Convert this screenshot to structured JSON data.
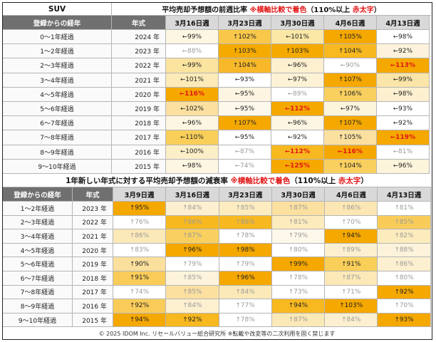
{
  "top": {
    "category": "SUV",
    "title": "平均売却予想額の前週比率",
    "note_prefix": "※横軸比較で着色",
    "note_paren_open": "（110%以上",
    "note_bold": "赤太字",
    "note_paren_close": "）",
    "headers": [
      "登録からの経年",
      "年式",
      "3月16日週",
      "3月23日週",
      "3月30日週",
      "4月6日週",
      "4月13日週"
    ],
    "rows": [
      {
        "label": "0～1年経過",
        "year": "2024 年",
        "cells": [
          {
            "a": "←",
            "v": "99%",
            "bg": "#fdf6e2",
            "s": ""
          },
          {
            "a": "↑",
            "v": "102%",
            "bg": "#f9c84a",
            "s": ""
          },
          {
            "a": "←",
            "v": "101%",
            "bg": "#fbe7a6",
            "s": ""
          },
          {
            "a": "↑",
            "v": "105%",
            "bg": "#f5a800",
            "s": ""
          },
          {
            "a": "←",
            "v": "98%",
            "bg": "#ffffff",
            "s": ""
          }
        ]
      },
      {
        "label": "1～2年経過",
        "year": "2023 年",
        "cells": [
          {
            "a": "←",
            "v": "88%",
            "bg": "#ffffff",
            "s": "dim"
          },
          {
            "a": "↑",
            "v": "103%",
            "bg": "#f5aa00",
            "s": ""
          },
          {
            "a": "↑",
            "v": "103%",
            "bg": "#f5aa00",
            "s": ""
          },
          {
            "a": "↑",
            "v": "104%",
            "bg": "#f7b820",
            "s": ""
          },
          {
            "a": "←",
            "v": "92%",
            "bg": "#fdf3dc",
            "s": ""
          }
        ]
      },
      {
        "label": "2～3年経過",
        "year": "2022 年",
        "cells": [
          {
            "a": "←",
            "v": "99%",
            "bg": "#fbe3a0",
            "s": ""
          },
          {
            "a": "↑",
            "v": "104%",
            "bg": "#f7b82a",
            "s": ""
          },
          {
            "a": "←",
            "v": "96%",
            "bg": "#fdf0d0",
            "s": ""
          },
          {
            "a": "←",
            "v": "90%",
            "bg": "#ffffff",
            "s": "dim"
          },
          {
            "a": "←",
            "v": "113%",
            "bg": "#f5a800",
            "s": "red"
          }
        ]
      },
      {
        "label": "3～4年経過",
        "year": "2021 年",
        "cells": [
          {
            "a": "←",
            "v": "101%",
            "bg": "#fcebb8",
            "s": ""
          },
          {
            "a": "←",
            "v": "93%",
            "bg": "#ffffff",
            "s": ""
          },
          {
            "a": "←",
            "v": "97%",
            "bg": "#fdf2d6",
            "s": ""
          },
          {
            "a": "↑",
            "v": "107%",
            "bg": "#f5a800",
            "s": ""
          },
          {
            "a": "←",
            "v": "99%",
            "bg": "#fbe5a8",
            "s": ""
          }
        ]
      },
      {
        "label": "4～5年経過",
        "year": "2020 年",
        "cells": [
          {
            "a": "←",
            "v": "116%",
            "bg": "#f5a800",
            "s": "red"
          },
          {
            "a": "←",
            "v": "95%",
            "bg": "#fdf5e2",
            "s": ""
          },
          {
            "a": "←",
            "v": "89%",
            "bg": "#ffffff",
            "s": "dim"
          },
          {
            "a": "↑",
            "v": "106%",
            "bg": "#f9d060",
            "s": ""
          },
          {
            "a": "←",
            "v": "98%",
            "bg": "#fdf0d0",
            "s": ""
          }
        ]
      },
      {
        "label": "5～6年経過",
        "year": "2019 年",
        "cells": [
          {
            "a": "←",
            "v": "102%",
            "bg": "#fbe0a0",
            "s": ""
          },
          {
            "a": "←",
            "v": "95%",
            "bg": "#fdf8ea",
            "s": ""
          },
          {
            "a": "←",
            "v": "112%",
            "bg": "#f5a800",
            "s": "red"
          },
          {
            "a": "←",
            "v": "97%",
            "bg": "#fdf4dc",
            "s": ""
          },
          {
            "a": "←",
            "v": "93%",
            "bg": "#ffffff",
            "s": ""
          }
        ]
      },
      {
        "label": "6～7年経過",
        "year": "2018 年",
        "cells": [
          {
            "a": "←",
            "v": "96%",
            "bg": "#fdf6e2",
            "s": ""
          },
          {
            "a": "↑",
            "v": "107%",
            "bg": "#f5a800",
            "s": ""
          },
          {
            "a": "←",
            "v": "96%",
            "bg": "#fdf6e2",
            "s": ""
          },
          {
            "a": "↑",
            "v": "107%",
            "bg": "#f5a800",
            "s": ""
          },
          {
            "a": "←",
            "v": "92%",
            "bg": "#ffffff",
            "s": ""
          }
        ]
      },
      {
        "label": "7～8年経過",
        "year": "2017 年",
        "cells": [
          {
            "a": "←",
            "v": "110%",
            "bg": "#f9cf5a",
            "s": ""
          },
          {
            "a": "←",
            "v": "95%",
            "bg": "#ffffff",
            "s": ""
          },
          {
            "a": "←",
            "v": "92%",
            "bg": "#ffffff",
            "s": ""
          },
          {
            "a": "↑",
            "v": "105%",
            "bg": "#fbe0a0",
            "s": ""
          },
          {
            "a": "←",
            "v": "119%",
            "bg": "#f5a800",
            "s": "red"
          }
        ]
      },
      {
        "label": "8～9年経過",
        "year": "2016 年",
        "cells": [
          {
            "a": "←",
            "v": "100%",
            "bg": "#fcefc8",
            "s": ""
          },
          {
            "a": "←",
            "v": "87%",
            "bg": "#ffffff",
            "s": "dim"
          },
          {
            "a": "←",
            "v": "112%",
            "bg": "#f7b820",
            "s": "red"
          },
          {
            "a": "←",
            "v": "116%",
            "bg": "#f5a800",
            "s": "red"
          },
          {
            "a": "←",
            "v": "81%",
            "bg": "#ffffff",
            "s": "dim"
          }
        ]
      },
      {
        "label": "9～10年経過",
        "year": "2015 年",
        "cells": [
          {
            "a": "←",
            "v": "98%",
            "bg": "#fdf6e2",
            "s": ""
          },
          {
            "a": "←",
            "v": "74%",
            "bg": "#ffffff",
            "s": "dim"
          },
          {
            "a": "←",
            "v": "125%",
            "bg": "#f5a800",
            "s": "red"
          },
          {
            "a": "↑",
            "v": "104%",
            "bg": "#f9d060",
            "s": ""
          },
          {
            "a": "←",
            "v": "96%",
            "bg": "#fdf4dc",
            "s": ""
          }
        ]
      }
    ]
  },
  "bottom": {
    "title": "1年新しい年式に対する平均売却予想額の減衰率",
    "note_prefix": "※横軸比較で着色",
    "note_paren_open": "（110%以上",
    "note_bold": "赤太字",
    "note_paren_close": "）",
    "headers": [
      "登録からの経年",
      "年式",
      "3月9日週",
      "3月16日週",
      "3月23日週",
      "3月30日週",
      "4月6日週",
      "4月13日週"
    ],
    "rows": [
      {
        "label": "1～2年経過",
        "year": "2023 年",
        "cells": [
          {
            "a": "↑",
            "v": "95%",
            "bg": "#f5a800",
            "s": ""
          },
          {
            "a": "↑",
            "v": "84%",
            "bg": "#fdf0d0",
            "s": "dim"
          },
          {
            "a": "↑",
            "v": "85%",
            "bg": "#fcecc0",
            "s": "dim"
          },
          {
            "a": "↑",
            "v": "87%",
            "bg": "#fbe0a0",
            "s": "dim"
          },
          {
            "a": "↑",
            "v": "86%",
            "bg": "#fce7b4",
            "s": "dim"
          },
          {
            "a": "↑",
            "v": "81%",
            "bg": "#ffffff",
            "s": "dim"
          }
        ]
      },
      {
        "label": "2～3年経過",
        "year": "2022 年",
        "cells": [
          {
            "a": "↑",
            "v": "76%",
            "bg": "#ffffff",
            "s": "dim"
          },
          {
            "a": "↑",
            "v": "86%",
            "bg": "#f7b820",
            "s": "dim"
          },
          {
            "a": "↑",
            "v": "86%",
            "bg": "#f7b820",
            "s": "dim"
          },
          {
            "a": "↑",
            "v": "81%",
            "bg": "#fcebbc",
            "s": "dim"
          },
          {
            "a": "↑",
            "v": "70%",
            "bg": "#ffffff",
            "s": "dim"
          },
          {
            "a": "↑",
            "v": "85%",
            "bg": "#f9cc5a",
            "s": "dim"
          }
        ]
      },
      {
        "label": "3～4年経過",
        "year": "2021 年",
        "cells": [
          {
            "a": "↑",
            "v": "86%",
            "bg": "#fce9b8",
            "s": "dim"
          },
          {
            "a": "↑",
            "v": "87%",
            "bg": "#f9d060",
            "s": "dim"
          },
          {
            "a": "↑",
            "v": "78%",
            "bg": "#ffffff",
            "s": "dim"
          },
          {
            "a": "↑",
            "v": "79%",
            "bg": "#fdf8ea",
            "s": "dim"
          },
          {
            "a": "↑",
            "v": "94%",
            "bg": "#f5a800",
            "s": ""
          },
          {
            "a": "↑",
            "v": "82%",
            "bg": "#fcebbc",
            "s": "dim"
          }
        ]
      },
      {
        "label": "4～5年経過",
        "year": "2020 年",
        "cells": [
          {
            "a": "↑",
            "v": "83%",
            "bg": "#ffffff",
            "s": "dim"
          },
          {
            "a": "↑",
            "v": "96%",
            "bg": "#f5a800",
            "s": ""
          },
          {
            "a": "↑",
            "v": "98%",
            "bg": "#f5a800",
            "s": ""
          },
          {
            "a": "↑",
            "v": "80%",
            "bg": "#ffffff",
            "s": "dim"
          },
          {
            "a": "↑",
            "v": "89%",
            "bg": "#fdf0d0",
            "s": "dim"
          },
          {
            "a": "↑",
            "v": "88%",
            "bg": "#fdf3dc",
            "s": "dim"
          }
        ]
      },
      {
        "label": "5～6年経過",
        "year": "2019 年",
        "cells": [
          {
            "a": "↑",
            "v": "90%",
            "bg": "#fbdf9c",
            "s": ""
          },
          {
            "a": "↑",
            "v": "79%",
            "bg": "#ffffff",
            "s": "dim"
          },
          {
            "a": "↑",
            "v": "79%",
            "bg": "#ffffff",
            "s": "dim"
          },
          {
            "a": "↑",
            "v": "99%",
            "bg": "#f5a800",
            "s": ""
          },
          {
            "a": "↑",
            "v": "91%",
            "bg": "#f9cf5a",
            "s": ""
          },
          {
            "a": "↑",
            "v": "86%",
            "bg": "#fdf0d0",
            "s": "dim"
          }
        ]
      },
      {
        "label": "6～7年経過",
        "year": "2018 年",
        "cells": [
          {
            "a": "↑",
            "v": "91%",
            "bg": "#f9cc5a",
            "s": ""
          },
          {
            "a": "↑",
            "v": "85%",
            "bg": "#fdf3dc",
            "s": "dim"
          },
          {
            "a": "↑",
            "v": "96%",
            "bg": "#f5a800",
            "s": ""
          },
          {
            "a": "↑",
            "v": "78%",
            "bg": "#ffffff",
            "s": "dim"
          },
          {
            "a": "↑",
            "v": "87%",
            "bg": "#fce9b8",
            "s": "dim"
          },
          {
            "a": "↑",
            "v": "80%",
            "bg": "#ffffff",
            "s": "dim"
          }
        ]
      },
      {
        "label": "7～8年経過",
        "year": "2017 年",
        "cells": [
          {
            "a": "↑",
            "v": "74%",
            "bg": "#ffffff",
            "s": "dim"
          },
          {
            "a": "↑",
            "v": "85%",
            "bg": "#fbe0a0",
            "s": "dim"
          },
          {
            "a": "↑",
            "v": "84%",
            "bg": "#fce9b8",
            "s": "dim"
          },
          {
            "a": "↑",
            "v": "73%",
            "bg": "#ffffff",
            "s": "dim"
          },
          {
            "a": "↑",
            "v": "71%",
            "bg": "#ffffff",
            "s": "dim"
          },
          {
            "a": "↑",
            "v": "92%",
            "bg": "#f5a800",
            "s": ""
          }
        ]
      },
      {
        "label": "8～9年経過",
        "year": "2016 年",
        "cells": [
          {
            "a": "↑",
            "v": "92%",
            "bg": "#f9cc5a",
            "s": ""
          },
          {
            "a": "↑",
            "v": "84%",
            "bg": "#fdf0d0",
            "s": "dim"
          },
          {
            "a": "↑",
            "v": "77%",
            "bg": "#ffffff",
            "s": "dim"
          },
          {
            "a": "↑",
            "v": "94%",
            "bg": "#f7b820",
            "s": ""
          },
          {
            "a": "↑",
            "v": "103%",
            "bg": "#f5a800",
            "s": ""
          },
          {
            "a": "↑",
            "v": "70%",
            "bg": "#ffffff",
            "s": "dim"
          }
        ]
      },
      {
        "label": "9～10年経過",
        "year": "2015 年",
        "cells": [
          {
            "a": "↑",
            "v": "94%",
            "bg": "#f5a800",
            "s": ""
          },
          {
            "a": "↑",
            "v": "92%",
            "bg": "#f7b820",
            "s": ""
          },
          {
            "a": "↑",
            "v": "78%",
            "bg": "#ffffff",
            "s": "dim"
          },
          {
            "a": "↑",
            "v": "87%",
            "bg": "#fce9b8",
            "s": "dim"
          },
          {
            "a": "↑",
            "v": "84%",
            "bg": "#fdf0d0",
            "s": "dim"
          },
          {
            "a": "↑",
            "v": "93%",
            "bg": "#f5a800",
            "s": ""
          }
        ]
      }
    ]
  },
  "footer": "© 2025 IDOM Inc. リセールバリュー総合研究所 ※転載や改変等の二次利用を固く禁じます"
}
